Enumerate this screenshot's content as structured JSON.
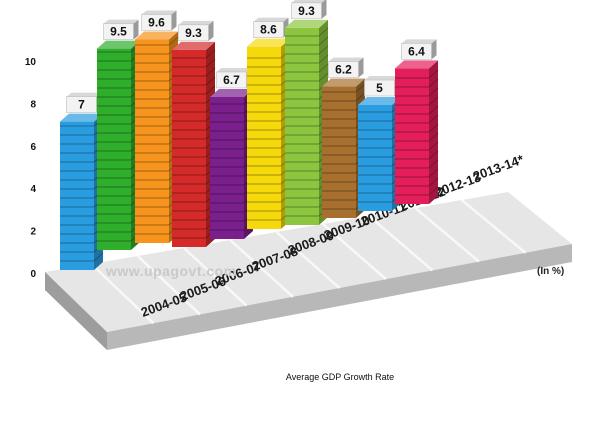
{
  "chart_data": {
    "type": "bar",
    "title": "Average GDP Growth Rate",
    "unit_label": "(In %)",
    "watermark": "www.upagovt.com",
    "categories": [
      "2004-05",
      "2005-06",
      "2006-07",
      "2007-08",
      "2008-09",
      "2009-10",
      "2010-11",
      "2011-12",
      "2012-13",
      "2013-14*"
    ],
    "values": [
      7,
      9.5,
      9.6,
      9.3,
      6.7,
      8.6,
      9.3,
      6.2,
      5,
      6.4
    ],
    "value_labels": [
      "7",
      "9.5",
      "9.6",
      "9.3",
      "6.7",
      "8.6",
      "9.3",
      "6.2",
      "5",
      "6.4"
    ],
    "colors": [
      "#2a9de0",
      "#2fae2b",
      "#f7941d",
      "#d42a2a",
      "#7a1f8c",
      "#f5d90a",
      "#8cc63f",
      "#a7702f",
      "#2a9de0",
      "#e41e5b"
    ],
    "ylim": [
      0,
      10
    ],
    "yticks": [
      "0",
      "2",
      "4",
      "6",
      "8",
      "10"
    ],
    "grid": false,
    "legend": "none"
  }
}
